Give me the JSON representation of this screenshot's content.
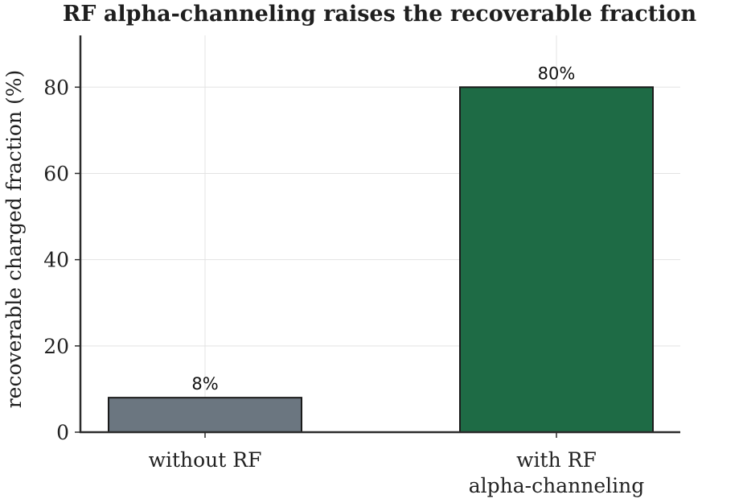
{
  "chart_data": {
    "type": "bar",
    "title": "RF alpha-channeling raises the recoverable fraction",
    "xlabel": "",
    "ylabel": "recoverable charged fraction (%)",
    "categories": [
      [
        "without RF"
      ],
      [
        "with RF",
        "alpha-channeling"
      ]
    ],
    "values": [
      8,
      80
    ],
    "data_labels": [
      "8%",
      "80%"
    ],
    "colors": [
      "#6b7680",
      "#1e6b45"
    ],
    "ylim": [
      0,
      92
    ],
    "yticks": [
      0,
      20,
      40,
      60,
      80
    ],
    "grid": true,
    "legend": "none"
  }
}
